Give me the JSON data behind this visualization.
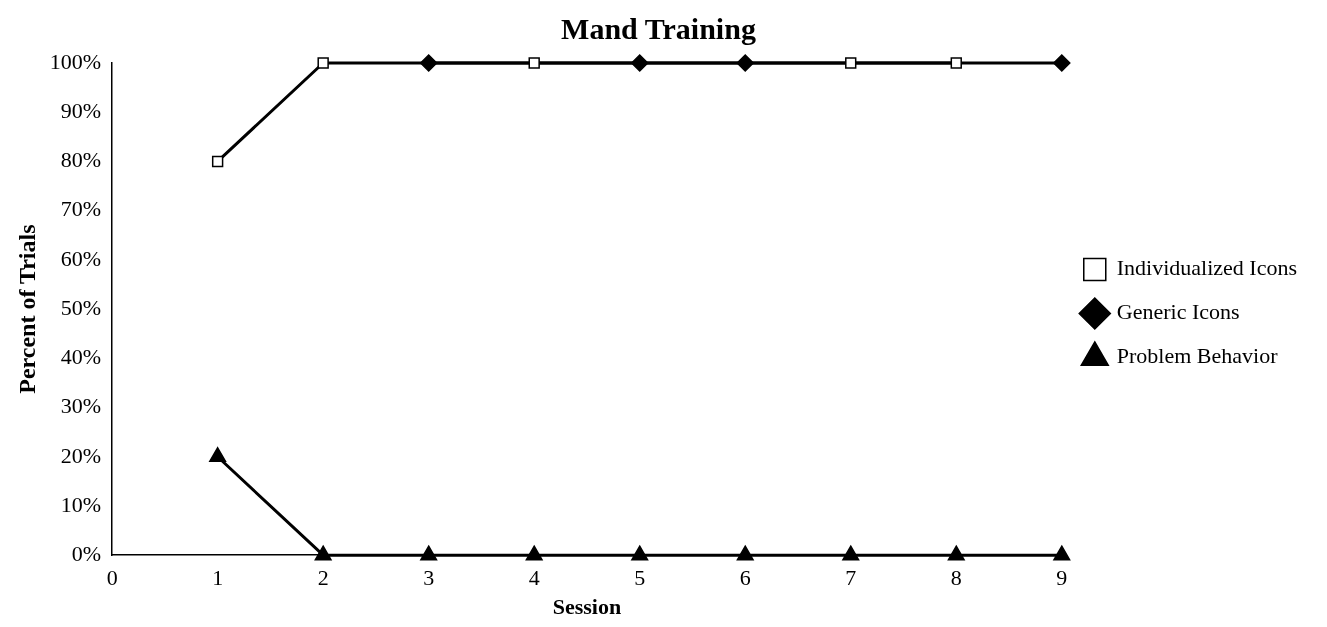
{
  "chart_data": {
    "type": "line",
    "title": "Mand Training",
    "xlabel": "Session",
    "ylabel": "Percent of Trials",
    "series": [
      {
        "name": "Individualized Icons",
        "color": "#000000",
        "marker": "square",
        "x": [
          1,
          2,
          4,
          7,
          8
        ],
        "values": [
          80,
          100,
          100,
          100,
          100
        ]
      },
      {
        "name": "Generic Icons",
        "color": "#000000",
        "marker": "diamond",
        "x": [
          3,
          5,
          6,
          9
        ],
        "values": [
          100,
          100,
          100,
          100
        ]
      },
      {
        "name": "Problem Behavior",
        "color": "#000000",
        "marker": "triangle",
        "x": [
          1,
          2,
          3,
          4,
          5,
          6,
          7,
          8,
          9
        ],
        "values": [
          20,
          0,
          0,
          0,
          0,
          0,
          0,
          0,
          0
        ]
      }
    ],
    "xlim": [
      0,
      9
    ],
    "xticks": [
      0,
      1,
      2,
      3,
      4,
      5,
      6,
      7,
      8,
      9
    ],
    "ylim": [
      0,
      100
    ],
    "yticks": [
      {
        "value": 0,
        "label": "0%"
      },
      {
        "value": 10,
        "label": "10%"
      },
      {
        "value": 20,
        "label": "20%"
      },
      {
        "value": 30,
        "label": "30%"
      },
      {
        "value": 40,
        "label": "40%"
      },
      {
        "value": 50,
        "label": "50%"
      },
      {
        "value": 60,
        "label": "60%"
      },
      {
        "value": 70,
        "label": "70%"
      },
      {
        "value": 80,
        "label": "80%"
      },
      {
        "value": 90,
        "label": "90%"
      },
      {
        "value": 100,
        "label": "100%"
      }
    ],
    "grid": false,
    "legend": "right"
  }
}
